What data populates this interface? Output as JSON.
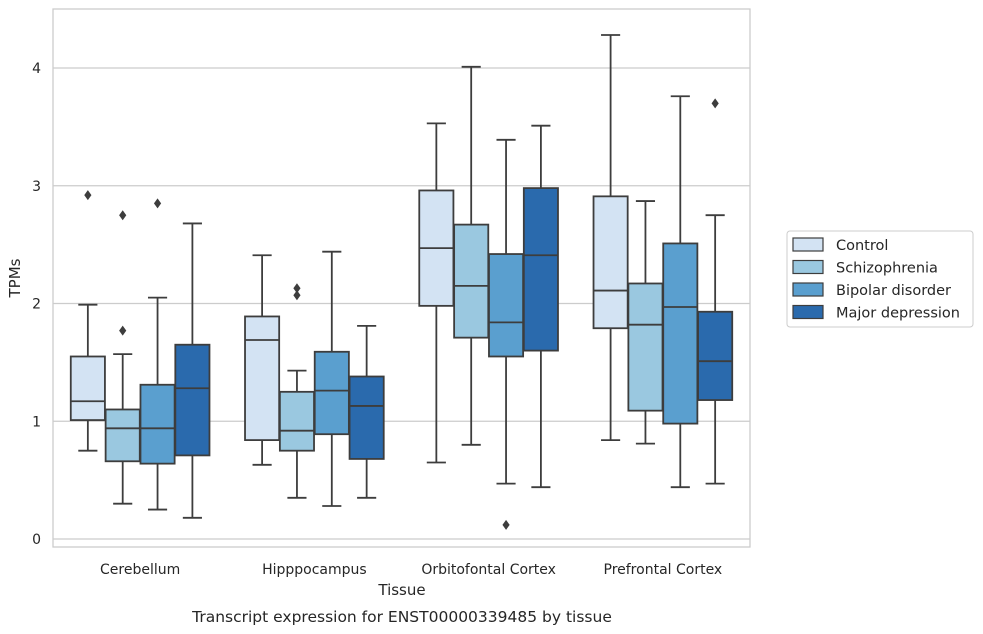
{
  "chart_data": {
    "type": "box",
    "caption": "Transcript expression for ENST00000339485 by tissue",
    "xlabel": "Tissue",
    "ylabel": "TPMs",
    "ylim": [
      -0.08,
      4.5
    ],
    "yticks": [
      0,
      1,
      2,
      3,
      4
    ],
    "grid": "horizontal",
    "legend_placement": "right",
    "categories": [
      "Cerebellum",
      "Hipppocampus",
      "Orbitofontal Cortex",
      "Prefrontal Cortex"
    ],
    "series": [
      {
        "name": "Control",
        "color": "#d3e3f3",
        "boxes": [
          {
            "whislo": 0.75,
            "q1": 1.01,
            "med": 1.17,
            "q3": 1.55,
            "whishi": 1.99,
            "fliers": [
              2.92
            ]
          },
          {
            "whislo": 0.63,
            "q1": 0.84,
            "med": 1.69,
            "q3": 1.89,
            "whishi": 2.41,
            "fliers": []
          },
          {
            "whislo": 0.65,
            "q1": 1.98,
            "med": 2.47,
            "q3": 2.96,
            "whishi": 3.53,
            "fliers": []
          },
          {
            "whislo": 0.84,
            "q1": 1.79,
            "med": 2.11,
            "q3": 2.91,
            "whishi": 4.28,
            "fliers": []
          }
        ]
      },
      {
        "name": "Schizophrenia",
        "color": "#9ac8e0",
        "boxes": [
          {
            "whislo": 0.3,
            "q1": 0.66,
            "med": 0.94,
            "q3": 1.1,
            "whishi": 1.57,
            "fliers": [
              1.77,
              2.75
            ]
          },
          {
            "whislo": 0.35,
            "q1": 0.75,
            "med": 0.92,
            "q3": 1.25,
            "whishi": 1.43,
            "fliers": [
              2.07,
              2.13
            ]
          },
          {
            "whislo": 0.8,
            "q1": 1.71,
            "med": 2.15,
            "q3": 2.67,
            "whishi": 4.01,
            "fliers": []
          },
          {
            "whislo": 0.81,
            "q1": 1.09,
            "med": 1.82,
            "q3": 2.17,
            "whishi": 2.87,
            "fliers": []
          }
        ]
      },
      {
        "name": "Bipolar disorder",
        "color": "#5a9fcf",
        "boxes": [
          {
            "whislo": 0.25,
            "q1": 0.64,
            "med": 0.94,
            "q3": 1.31,
            "whishi": 2.05,
            "fliers": [
              2.85
            ]
          },
          {
            "whislo": 0.28,
            "q1": 0.89,
            "med": 1.26,
            "q3": 1.59,
            "whishi": 2.44,
            "fliers": []
          },
          {
            "whislo": 0.47,
            "q1": 1.55,
            "med": 1.84,
            "q3": 2.42,
            "whishi": 3.39,
            "fliers": [
              0.12
            ]
          },
          {
            "whislo": 0.44,
            "q1": 0.98,
            "med": 1.97,
            "q3": 2.51,
            "whishi": 3.76,
            "fliers": []
          }
        ]
      },
      {
        "name": "Major depression",
        "color": "#2a6aad",
        "boxes": [
          {
            "whislo": 0.18,
            "q1": 0.71,
            "med": 1.28,
            "q3": 1.65,
            "whishi": 2.68,
            "fliers": []
          },
          {
            "whislo": 0.35,
            "q1": 0.68,
            "med": 1.13,
            "q3": 1.38,
            "whishi": 1.81,
            "fliers": []
          },
          {
            "whislo": 0.44,
            "q1": 1.6,
            "med": 2.41,
            "q3": 2.98,
            "whishi": 3.51,
            "fliers": []
          },
          {
            "whislo": 0.47,
            "q1": 1.18,
            "med": 1.51,
            "q3": 1.93,
            "whishi": 2.75,
            "fliers": [
              3.7
            ]
          }
        ]
      }
    ]
  },
  "colors": {
    "grid": "#cccccc",
    "frame": "#cccccc",
    "line": "#3d3d3d"
  }
}
